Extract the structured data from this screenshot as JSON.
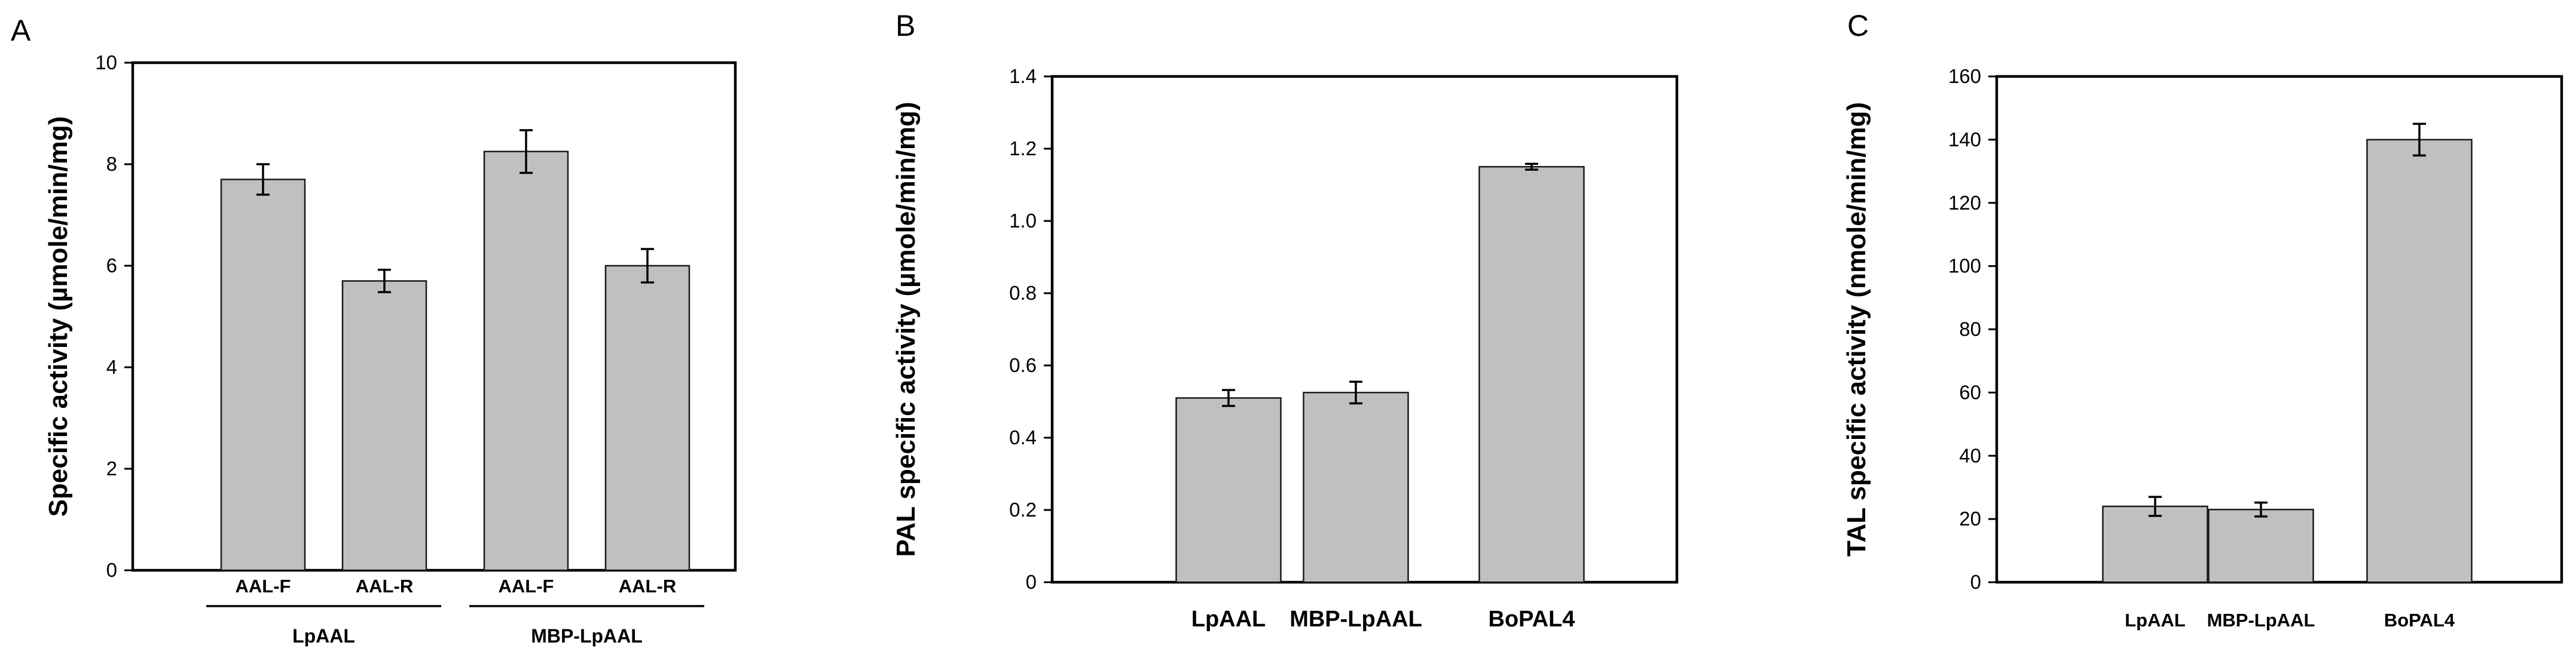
{
  "colors": {
    "bar_fill": "#c0c0c0",
    "bar_stroke": "#1a1a1a",
    "axis": "#000000",
    "errorbar": "#000000"
  },
  "chart_data": [
    {
      "type": "bar",
      "panel": "A",
      "ylabel": "Specific activity (µmole/min/mg)",
      "ylim": [
        0,
        10
      ],
      "yticks": [
        0,
        2,
        4,
        6,
        8,
        10
      ],
      "categories": [
        "AAL-F",
        "AAL-R",
        "AAL-F",
        "AAL-R"
      ],
      "values": [
        7.7,
        5.7,
        8.25,
        6.0
      ],
      "errors": [
        0.3,
        0.22,
        0.42,
        0.33
      ],
      "groups": [
        {
          "label": "LpAAL",
          "members": [
            0,
            1
          ]
        },
        {
          "label": "MBP-LpAAL",
          "members": [
            2,
            3
          ]
        }
      ],
      "grid": false
    },
    {
      "type": "bar",
      "panel": "B",
      "ylabel": "PAL specific activity (µmole/min/mg)",
      "ylim": [
        0,
        1.4
      ],
      "yticks": [
        0,
        0.2,
        0.4,
        0.6,
        0.8,
        1.0,
        1.2,
        1.4
      ],
      "ytick_labels": [
        "0",
        "0.2",
        "0.4",
        "0.6",
        "0.8",
        "1.0",
        "1.2",
        "1.4"
      ],
      "categories": [
        "LpAAL",
        "MBP-LpAAL",
        "BoPAL4"
      ],
      "values": [
        0.51,
        0.525,
        1.15
      ],
      "errors": [
        0.022,
        0.03,
        0.008
      ],
      "grid": false
    },
    {
      "type": "bar",
      "panel": "C",
      "ylabel": "TAL specific activity (nmole/min/mg)",
      "ylim": [
        0,
        160
      ],
      "yticks": [
        0,
        20,
        40,
        60,
        80,
        100,
        120,
        140,
        160
      ],
      "categories": [
        "LpAAL",
        "MBP-LpAAL",
        "BoPAL4"
      ],
      "values": [
        24,
        23,
        140
      ],
      "errors": [
        3,
        2.2,
        5
      ],
      "grid": false
    }
  ]
}
